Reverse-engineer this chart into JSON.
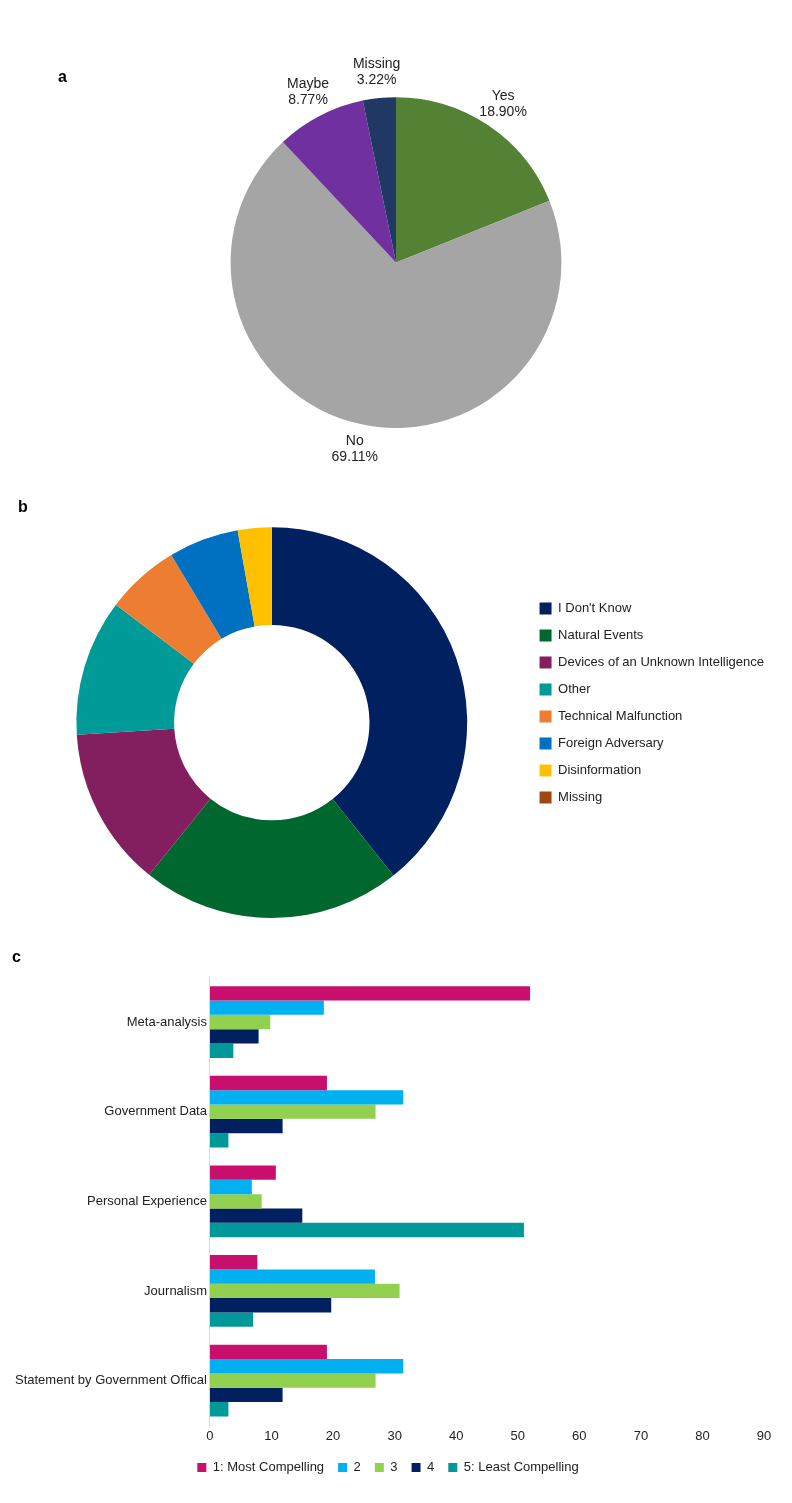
{
  "chart_data": [
    {
      "type": "pie",
      "title": "a",
      "categories": [
        "Yes",
        "No",
        "Maybe",
        "Missing"
      ],
      "values": [
        18.9,
        69.11,
        8.77,
        3.22
      ],
      "value_labels": [
        "18.90%",
        "69.11%",
        "8.77%",
        "3.22%"
      ],
      "colors": [
        "#548235",
        "#a5a5a5",
        "#7030a0",
        "#203864"
      ],
      "legend": false
    },
    {
      "type": "donut",
      "title": "b",
      "categories": [
        "I Don't Know",
        "Natural Events",
        "Devices of an Unknown Intelligence",
        "Other",
        "Technical Malfunction",
        "Foreign Adversary",
        "Disinformation",
        "Missing"
      ],
      "values": [
        39.3,
        21.5,
        13.2,
        11.3,
        6.1,
        5.8,
        2.8,
        0
      ],
      "colors": [
        "#002060",
        "#00682f",
        "#831f5f",
        "#009b98",
        "#ed7d31",
        "#0070c0",
        "#ffc000",
        "#9e480e"
      ],
      "legend": "right"
    },
    {
      "type": "bar",
      "title": "c",
      "orientation": "horizontal",
      "categories": [
        "Meta-analysis",
        "Government Data",
        "Personal Experience",
        "Journalism",
        "Statement by Government Offical"
      ],
      "series": [
        {
          "name": "1: Most Compelling",
          "color": "#c80f6e",
          "values": [
            52,
            19,
            10.7,
            7.7,
            19
          ]
        },
        {
          "name": "2",
          "color": "#00b0f0",
          "values": [
            18.5,
            31.4,
            6.8,
            26.8,
            31.4
          ]
        },
        {
          "name": "3",
          "color": "#92d050",
          "values": [
            9.8,
            26.9,
            8.4,
            30.8,
            26.9
          ]
        },
        {
          "name": "4",
          "color": "#002060",
          "values": [
            7.9,
            11.8,
            15,
            19.7,
            11.8
          ]
        },
        {
          "name": "5: Least Compelling",
          "color": "#009999",
          "values": [
            3.8,
            3,
            51,
            7,
            3
          ]
        }
      ],
      "xlim": [
        0,
        90
      ],
      "xticks": [
        0,
        10,
        20,
        30,
        40,
        50,
        60,
        70,
        80,
        90
      ],
      "grid": false,
      "legend": "bottom"
    }
  ]
}
